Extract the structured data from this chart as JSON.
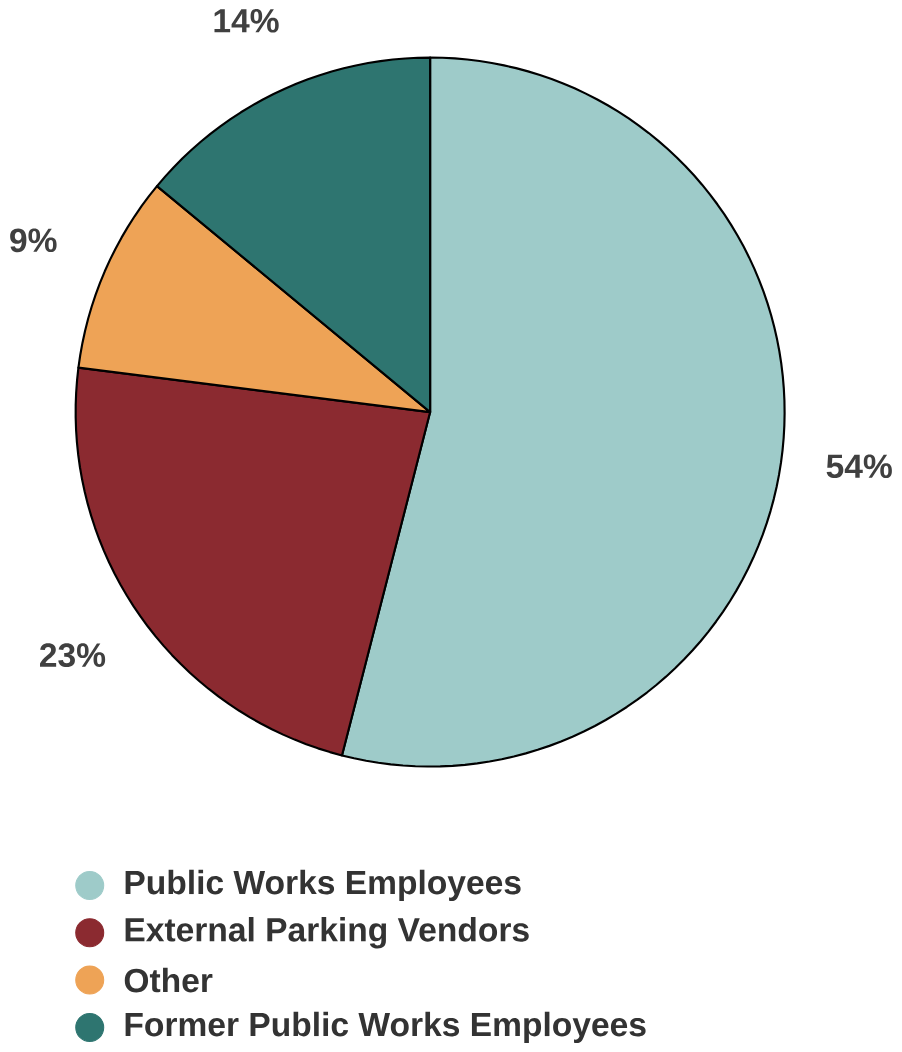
{
  "chart_data": {
    "type": "pie",
    "categories": [
      "Public Works Employees",
      "External Parking Vendors",
      "Other",
      "Former Public Works Employees"
    ],
    "values": [
      54,
      23,
      9,
      14
    ],
    "colors": [
      "#9ecbc9",
      "#8b2a30",
      "#eea356",
      "#2e7570"
    ],
    "value_labels": [
      "54%",
      "23%",
      "9%",
      "14%"
    ],
    "legend": "bottom"
  }
}
